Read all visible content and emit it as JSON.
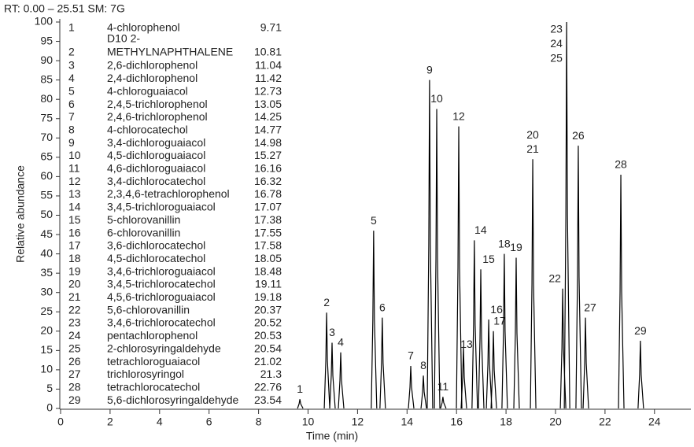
{
  "chart_data": {
    "type": "chromatogram",
    "header": "RT: 0.00 – 25.51 SM: 7G",
    "xlabel": "Time (min)",
    "ylabel": "Relative abundance",
    "xlim": [
      0,
      25.51
    ],
    "ylim": [
      0,
      100
    ],
    "xticks": [
      0,
      2,
      4,
      6,
      8,
      10,
      12,
      14,
      16,
      18,
      20,
      22,
      24
    ],
    "yticks": [
      0,
      5,
      10,
      15,
      20,
      25,
      30,
      35,
      40,
      45,
      50,
      55,
      60,
      65,
      70,
      75,
      80,
      85,
      90,
      95,
      100
    ],
    "color": "#000000",
    "x": [
      9.67,
      10.75,
      10.97,
      11.32,
      12.65,
      13.0,
      14.15,
      14.66,
      14.91,
      15.2,
      15.45,
      16.09,
      16.28,
      16.72,
      16.98,
      17.3,
      17.49,
      17.93,
      18.41,
      19.08,
      20.29,
      20.45,
      20.92,
      21.21,
      22.64,
      23.43
    ],
    "values": [
      2.4,
      24.8,
      17,
      14.5,
      46,
      23.5,
      11,
      8.5,
      85,
      77.5,
      3,
      73,
      16,
      43.5,
      36,
      23,
      20,
      40,
      39,
      64.5,
      31,
      100,
      68,
      23.5,
      60.5,
      17.5
    ],
    "peak_labels": [
      [
        "1"
      ],
      [
        "2"
      ],
      [
        "3"
      ],
      [
        "4"
      ],
      [
        "5"
      ],
      [
        "6"
      ],
      [
        "7"
      ],
      [
        "8"
      ],
      [
        "9"
      ],
      [
        "10"
      ],
      [
        "11"
      ],
      [
        "12"
      ],
      [
        "13"
      ],
      [
        "14"
      ],
      [
        "15"
      ],
      [
        "16"
      ],
      [
        "17"
      ],
      [
        "18"
      ],
      [
        "19"
      ],
      [
        "20",
        "21"
      ],
      [
        "22"
      ],
      [
        "23",
        "24",
        "25"
      ],
      [
        "26"
      ],
      [
        "27"
      ],
      [
        "28"
      ],
      [
        "29"
      ]
    ],
    "compounds": {
      "numbers": [
        1,
        2,
        3,
        4,
        5,
        6,
        7,
        8,
        9,
        10,
        11,
        12,
        13,
        14,
        15,
        16,
        17,
        18,
        19,
        20,
        21,
        22,
        23,
        24,
        25,
        26,
        27,
        28,
        29
      ],
      "names": [
        [
          "4-chlorophenol"
        ],
        [
          "D10 2-",
          "METHYLNAPHTHALENE"
        ],
        [
          "2,6-dichlorophenol"
        ],
        [
          "2,4-dichlorophenol"
        ],
        [
          "4-chloroguaiacol"
        ],
        [
          "2,4,5-trichlorophenol"
        ],
        [
          "2,4,6-trichlorophenol"
        ],
        [
          "4-chlorocatechol"
        ],
        [
          "3,4-dichloroguaiacol"
        ],
        [
          "4,5-dichloroguaiacol"
        ],
        [
          "4,6-dichloroguaiacol"
        ],
        [
          "3,4-dichlorocatechol"
        ],
        [
          "2,3,4,6-tetrachlorophenol"
        ],
        [
          "3,4,5-trichloroguaiacol"
        ],
        [
          "5-chlorovanillin"
        ],
        [
          "6-chlorovanillin"
        ],
        [
          "3,6-dichlorocatechol"
        ],
        [
          "4,5-dichlorocatechol"
        ],
        [
          "3,4,6-trichloroguaiacol"
        ],
        [
          "3,4,5-trichlorocatechol"
        ],
        [
          "4,5,6-trichloroguaiacol"
        ],
        [
          "5,6-chlorovanillin"
        ],
        [
          "3,4,6-trichlorocatechol"
        ],
        [
          "pentachlorophenol"
        ],
        [
          "2-chlorosyringaldehyde"
        ],
        [
          "tetrachloroguaiacol"
        ],
        [
          "trichlorosyringol"
        ],
        [
          "tetrachlorocatechol"
        ],
        [
          "5,6-dichlorosyringaldehyde"
        ]
      ],
      "rt": [
        9.71,
        10.81,
        11.04,
        11.42,
        12.73,
        13.05,
        14.25,
        14.77,
        14.98,
        15.27,
        16.16,
        16.32,
        16.78,
        17.07,
        17.38,
        17.55,
        17.58,
        18.05,
        18.48,
        19.11,
        19.18,
        20.37,
        20.52,
        20.53,
        20.54,
        21.02,
        21.3,
        22.76,
        23.54
      ]
    }
  }
}
